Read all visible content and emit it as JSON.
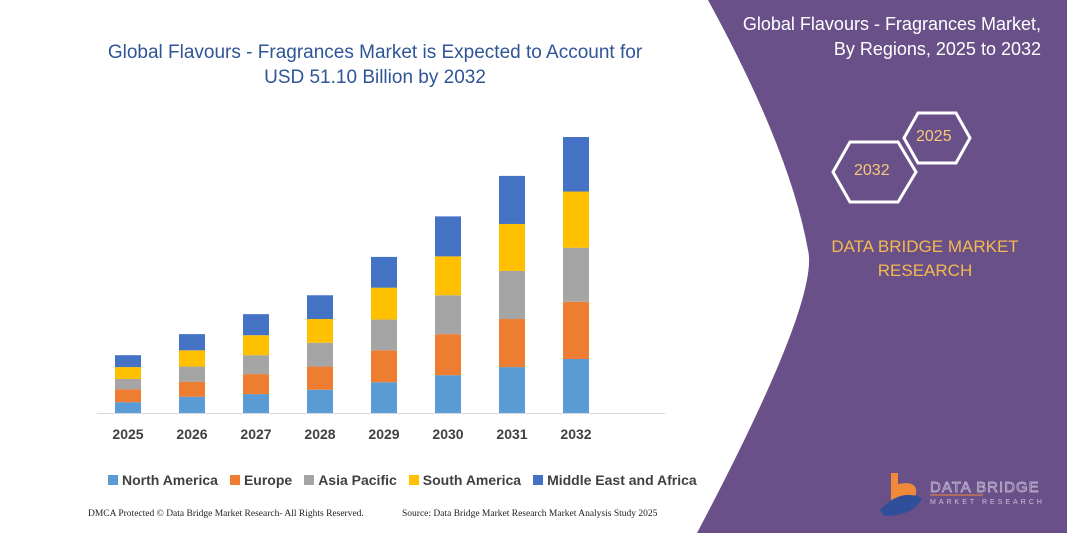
{
  "chart_data": {
    "type": "bar",
    "stacked": true,
    "title": "Global Flavours - Fragrances Market is Expected to Account for USD 51.10 Billion by 2032",
    "categories": [
      "2025",
      "2026",
      "2027",
      "2028",
      "2029",
      "2030",
      "2031",
      "2032"
    ],
    "series": [
      {
        "name": "North America",
        "color": "#5b9bd5",
        "values": [
          2.0,
          3.0,
          3.5,
          4.3,
          5.7,
          7.0,
          8.5,
          10.0
        ]
      },
      {
        "name": "Europe",
        "color": "#ed7d31",
        "values": [
          2.4,
          2.8,
          3.7,
          4.3,
          5.9,
          7.6,
          8.9,
          10.6
        ]
      },
      {
        "name": "Asia Pacific",
        "color": "#a5a5a5",
        "values": [
          1.9,
          2.8,
          3.5,
          4.4,
          5.7,
          7.2,
          8.9,
          10.0
        ]
      },
      {
        "name": "South America",
        "color": "#ffc000",
        "values": [
          2.2,
          3.0,
          3.7,
          4.4,
          5.9,
          7.2,
          8.7,
          10.4
        ]
      },
      {
        "name": "Middle East and Africa",
        "color": "#4472c4",
        "values": [
          2.2,
          3.0,
          3.9,
          4.4,
          5.7,
          7.4,
          8.9,
          10.1
        ]
      }
    ],
    "ylim": [
      0,
      51.1
    ],
    "grid": false,
    "y_axis_shown": false,
    "legend_placement": "bottom"
  },
  "footer": {
    "left": "DMCA Protected © Data Bridge Market Research-  All Rights Reserved.",
    "right": "Source: Data Bridge Market Research  Market Analysis Study 2025"
  },
  "panel": {
    "title_line1": "Global Flavours - Fragrances Market,",
    "title_line2": "By Regions, 2025 to 2032",
    "hex_start": "2025",
    "hex_end": "2032",
    "brand_line1": "DATA BRIDGE MARKET",
    "brand_line2": "RESEARCH",
    "logo_text": "DATA BRIDGE MARKET RESEARCH",
    "bg_color": "#6a5089"
  }
}
